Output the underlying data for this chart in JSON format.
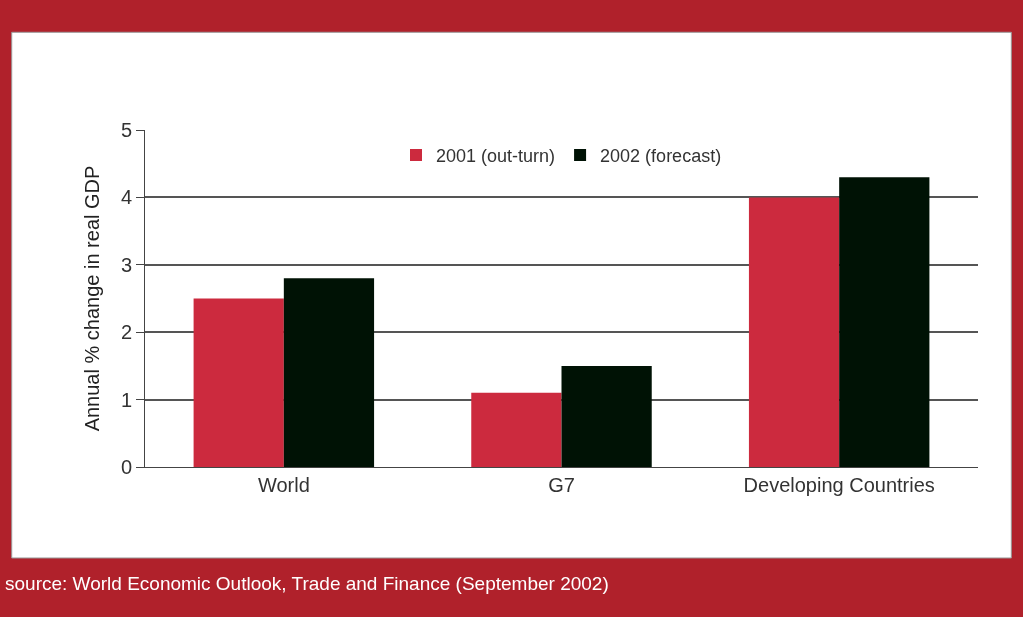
{
  "chart_data": {
    "type": "bar",
    "ylabel": "Annual % change in real GDP",
    "categories": [
      "World",
      "G7",
      "Developing Countries"
    ],
    "series": [
      {
        "name": "2001 (out-turn)",
        "color": "#cc2a3e",
        "values": [
          2.5,
          1.1,
          4.0
        ]
      },
      {
        "name": "2002 (forecast)",
        "color": "#001205",
        "values": [
          2.8,
          1.5,
          4.3
        ]
      }
    ],
    "ylim": [
      0,
      5
    ],
    "yticks": [
      0,
      1,
      2,
      3,
      4,
      5
    ],
    "grid": "y",
    "legend": "top",
    "annotations": [
      "source: World Economic Outlook, Trade and Finance (September 2002)"
    ]
  }
}
